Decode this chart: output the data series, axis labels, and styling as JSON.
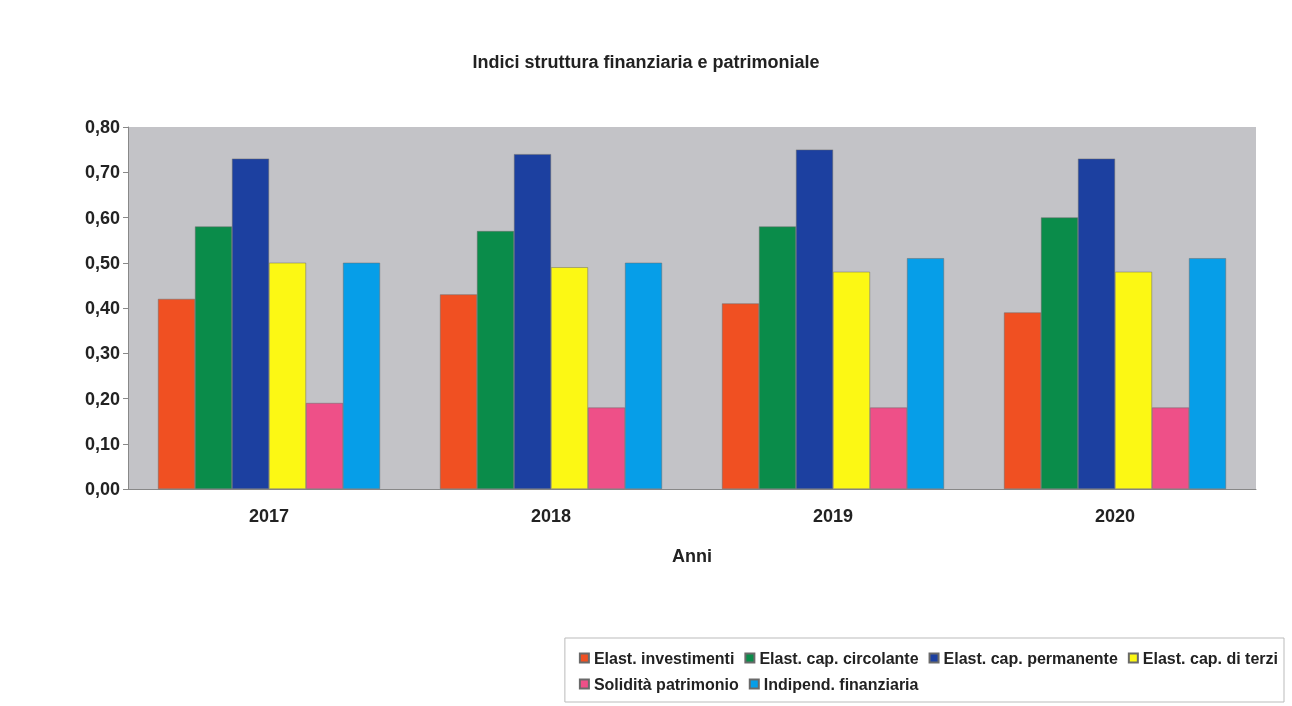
{
  "chart_data": {
    "type": "bar",
    "title": "Indici struttura finanziaria e patrimoniale",
    "xlabel": "Anni",
    "categories": [
      "2017",
      "2018",
      "2019",
      "2020"
    ],
    "series": [
      {
        "name": "Elast. investimenti",
        "color": "#f05022",
        "values": [
          0.42,
          0.43,
          0.41,
          0.39
        ]
      },
      {
        "name": "Elast. cap. circolante",
        "color": "#0a8c4a",
        "values": [
          0.58,
          0.57,
          0.58,
          0.6
        ]
      },
      {
        "name": "Elast. cap. permanente",
        "color": "#1c40a0",
        "values": [
          0.73,
          0.74,
          0.75,
          0.73
        ]
      },
      {
        "name": "Elast. cap. di terzi",
        "color": "#fcf814",
        "values": [
          0.5,
          0.49,
          0.48,
          0.48
        ]
      },
      {
        "name": "Solidità patrimonio",
        "color": "#ee5088",
        "values": [
          0.19,
          0.18,
          0.18,
          0.18
        ]
      },
      {
        "name": "Indipend. finanziaria",
        "color": "#069ee8",
        "values": [
          0.5,
          0.5,
          0.51,
          0.51
        ]
      }
    ],
    "ylim": [
      0,
      0.8
    ],
    "yticks": [
      {
        "value": 0,
        "label": "0,00"
      },
      {
        "value": 0.1,
        "label": "0,10"
      },
      {
        "value": 0.2,
        "label": "0,20"
      },
      {
        "value": 0.3,
        "label": "0,30"
      },
      {
        "value": 0.4,
        "label": "0,40"
      },
      {
        "value": 0.5,
        "label": "0,50"
      },
      {
        "value": 0.6,
        "label": "0,60"
      },
      {
        "value": 0.7,
        "label": "0,70"
      },
      {
        "value": 0.8,
        "label": "0,80"
      }
    ],
    "grid": false,
    "legend": "bottom right"
  }
}
